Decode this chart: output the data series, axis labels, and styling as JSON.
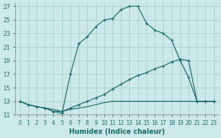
{
  "xlabel": "Humidex (Indice chaleur)",
  "xlim": [
    -0.5,
    23.5
  ],
  "ylim": [
    11,
    27.5
  ],
  "xticks": [
    0,
    1,
    2,
    3,
    4,
    5,
    6,
    7,
    8,
    9,
    10,
    11,
    12,
    13,
    14,
    15,
    16,
    17,
    18,
    19,
    20,
    21,
    22,
    23
  ],
  "yticks": [
    11,
    13,
    15,
    17,
    19,
    21,
    23,
    25,
    27
  ],
  "bg_color": "#cce8e8",
  "grid_color": "#aad0d0",
  "line_color": "#1a6b6b",
  "line1_x": [
    0,
    1,
    2,
    3,
    4,
    5,
    6,
    7,
    8,
    9,
    10,
    11,
    12,
    13,
    14,
    15,
    16,
    17,
    18,
    19,
    20,
    21,
    22,
    23
  ],
  "line1_y": [
    13,
    12.5,
    12.2,
    12.0,
    11.5,
    11.2,
    17.0,
    21.5,
    22.5,
    24.0,
    25.0,
    25.2,
    26.5,
    27.0,
    27.0,
    24.5,
    23.5,
    23.0,
    22.0,
    19.0,
    16.5,
    13.0,
    13.0,
    13.0
  ],
  "line2_x": [
    0,
    1,
    2,
    3,
    4,
    5,
    6,
    7,
    8,
    9,
    10,
    11,
    12,
    13,
    14,
    15,
    16,
    17,
    18,
    19,
    20,
    21,
    22,
    23
  ],
  "line2_y": [
    13,
    12.5,
    12.2,
    12.0,
    11.5,
    11.5,
    12.0,
    12.5,
    13.0,
    13.5,
    14.0,
    14.8,
    15.5,
    16.2,
    16.8,
    17.2,
    17.8,
    18.2,
    18.8,
    19.2,
    19.0,
    13.0,
    13.0,
    13.0
  ],
  "line3_x": [
    0,
    1,
    2,
    3,
    4,
    5,
    6,
    7,
    8,
    9,
    10,
    11,
    12,
    13,
    14,
    15,
    16,
    17,
    18,
    19,
    20,
    21,
    22,
    23
  ],
  "line3_y": [
    13,
    12.5,
    12.2,
    12.0,
    11.8,
    11.5,
    11.8,
    12.0,
    12.2,
    12.5,
    12.8,
    13.0,
    13.0,
    13.0,
    13.0,
    13.0,
    13.0,
    13.0,
    13.0,
    13.0,
    13.0,
    13.0,
    13.0,
    13.0
  ]
}
